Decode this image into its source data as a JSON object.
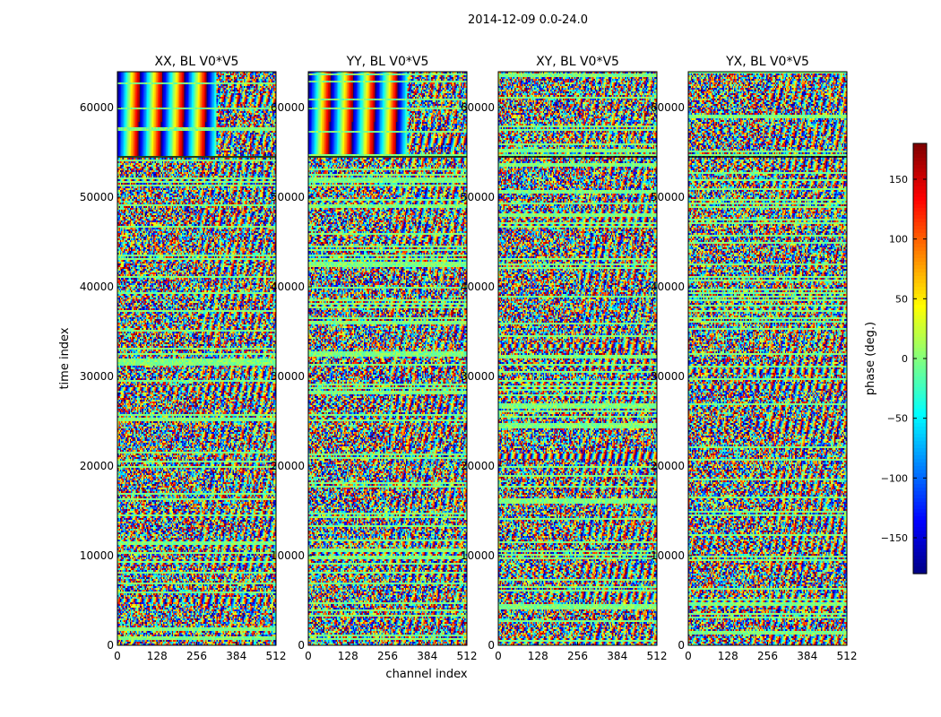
{
  "chart_data": {
    "type": "heatmap",
    "suptitle": "2014-12-09 0.0-24.0",
    "xlabel": "channel index",
    "ylabel": "time index",
    "xlim": [
      0,
      512
    ],
    "ylim": [
      0,
      64000
    ],
    "xticks": [
      0,
      128,
      256,
      384,
      512
    ],
    "yticks": [
      0,
      10000,
      20000,
      30000,
      40000,
      50000,
      60000
    ],
    "panels": [
      {
        "title": "XX, BL V0*V5"
      },
      {
        "title": "YY, BL V0*V5"
      },
      {
        "title": "XY, BL V0*V5"
      },
      {
        "title": "YX, BL V0*V5"
      }
    ],
    "colorbar": {
      "label": "phase (deg.)",
      "vmin": -180,
      "vmax": 180,
      "ticks": [
        150,
        100,
        50,
        0,
        -50,
        -100,
        -150
      ],
      "colormap": "jet"
    }
  }
}
